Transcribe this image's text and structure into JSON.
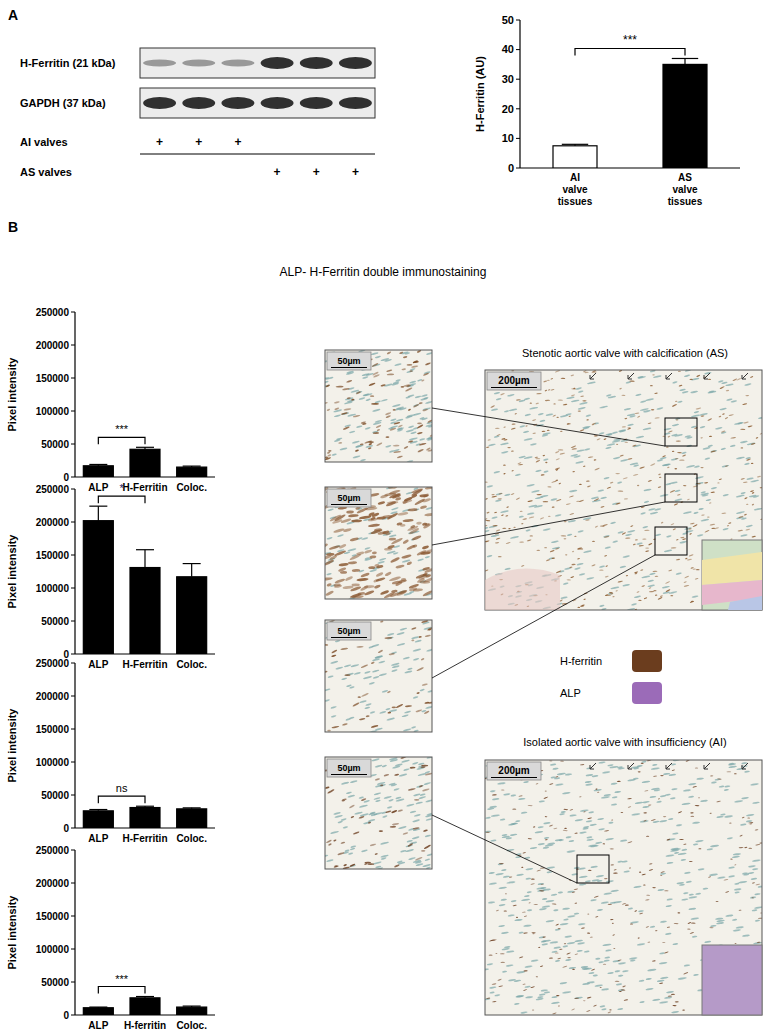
{
  "chart_data": [
    {
      "type": "bar",
      "y_label": "H-Ferritin (AU)",
      "categories": [
        "AI valve tissues",
        "AS valve tissues"
      ],
      "values": [
        7.5,
        35
      ],
      "errors": [
        0.5,
        2
      ],
      "colors": [
        "#ffffff",
        "#000000"
      ],
      "ylim": [
        0,
        50
      ],
      "yticks": [
        0,
        10,
        20,
        30,
        40,
        50
      ],
      "annotation": "***"
    },
    {
      "type": "bar",
      "y_label": "Pixel intensity",
      "categories": [
        "ALP",
        "H-Ferritin",
        "Coloc."
      ],
      "values": [
        17000,
        42000,
        15000
      ],
      "errors": [
        2000,
        3000,
        1500
      ],
      "color": "#000000",
      "ylim": [
        0,
        250000
      ],
      "yticks": [
        0,
        50000,
        100000,
        150000,
        200000,
        250000
      ],
      "annotation": "***"
    },
    {
      "type": "bar",
      "y_label": "Pixel intensity",
      "categories": [
        "ALP",
        "H-Ferritin",
        "Coloc."
      ],
      "values": [
        202000,
        131000,
        117000
      ],
      "errors": [
        22000,
        27000,
        20000
      ],
      "color": "#000000",
      "ylim": [
        0,
        250000
      ],
      "yticks": [
        0,
        50000,
        100000,
        150000,
        200000,
        250000
      ],
      "annotation": "*"
    },
    {
      "type": "bar",
      "y_label": "Pixel intensity",
      "categories": [
        "ALP",
        "H-Ferritin",
        "Coloc."
      ],
      "values": [
        26000,
        31000,
        29000
      ],
      "errors": [
        2000,
        2000,
        1500
      ],
      "color": "#000000",
      "ylim": [
        0,
        250000
      ],
      "yticks": [
        0,
        50000,
        100000,
        150000,
        200000,
        250000
      ],
      "annotation": "ns"
    },
    {
      "type": "bar",
      "y_label": "Pixel intensity",
      "categories": [
        "ALP",
        "H-ferritin",
        "Coloc."
      ],
      "values": [
        11000,
        26000,
        12000
      ],
      "errors": [
        1000,
        2000,
        1500
      ],
      "color": "#000000",
      "ylim": [
        0,
        250000
      ],
      "yticks": [
        0,
        50000,
        100000,
        150000,
        200000,
        250000
      ],
      "annotation": "***"
    }
  ],
  "figure": {
    "panel_labels": [
      "A",
      "B"
    ],
    "blot": {
      "rows": [
        "H-Ferritin (21 kDa)",
        "GAPDH (37 kDa)"
      ],
      "groups": [
        {
          "label": "AI valves",
          "lanes": [
            "+",
            "+",
            "+",
            null,
            null,
            null
          ]
        },
        {
          "label": "AS valves",
          "lanes": [
            null,
            null,
            null,
            "+",
            "+",
            "+"
          ]
        }
      ]
    },
    "panel_b_title": "ALP- H-Ferritin double immunostaining",
    "as_title": "Stenotic aortic valve with calcification (AS)",
    "ai_title": "Isolated aortic valve with insufficiency (AI)",
    "scale_small": "50µm",
    "scale_large": "200µm",
    "legend": [
      {
        "name": "H-ferritin",
        "color": "#6b3d1e"
      },
      {
        "name": "ALP",
        "color": "#9b6bb8"
      }
    ]
  }
}
